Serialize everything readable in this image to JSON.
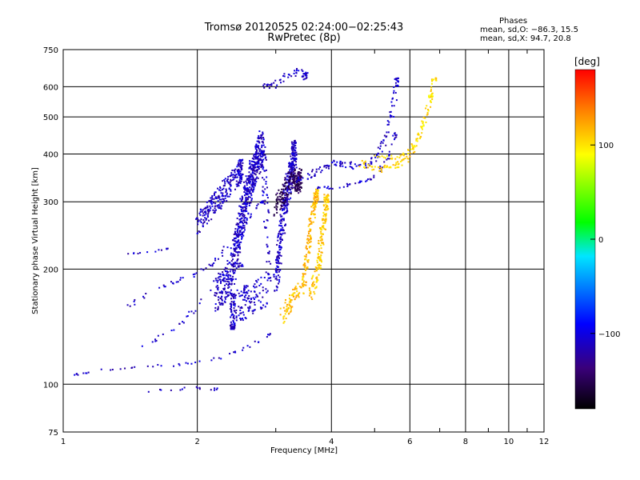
{
  "header": {
    "title_line1": "Tromsø 20120525 02:24:00−02:25:43",
    "title_line2": "RwPretec (8p)",
    "phases_title": "Phases",
    "phases_line1": "mean, sd,O: −86.3, 15.5",
    "phases_line2": "mean, sd,X:  94.7, 20.8"
  },
  "colorbar": {
    "unit": "[deg]",
    "range": [
      -180,
      180
    ],
    "ticks": [
      {
        "value": 100,
        "label": "100"
      },
      {
        "value": 0,
        "label": "0"
      },
      {
        "value": -100,
        "label": "−100"
      }
    ]
  },
  "chart_data": {
    "type": "scatter",
    "xlabel": "Frequency [MHz]",
    "ylabel": "Stationary phase Virtual Height [km]",
    "x_scale": "log",
    "y_scale": "log",
    "xlim": [
      1,
      12
    ],
    "ylim": [
      75,
      750
    ],
    "x_ticks": [
      1,
      2,
      4,
      6,
      8,
      10,
      12
    ],
    "x_tick_labels": [
      "1",
      "2",
      "4",
      "6",
      "8",
      "10",
      "12"
    ],
    "y_ticks": [
      75,
      100,
      200,
      300,
      400,
      500,
      600,
      750
    ],
    "y_tick_labels": [
      "75",
      "100",
      "200",
      "300",
      "400",
      "500",
      "600",
      "750"
    ],
    "grid": true,
    "traces": [
      {
        "phase": -110,
        "spread": 3,
        "points": [
          [
            1.0,
            104
          ],
          [
            1.1,
            107
          ],
          [
            1.2,
            109
          ],
          [
            1.35,
            110
          ],
          [
            1.5,
            111
          ],
          [
            1.7,
            112
          ],
          [
            1.9,
            113
          ],
          [
            2.1,
            115
          ],
          [
            2.3,
            118
          ],
          [
            2.5,
            123
          ],
          [
            2.7,
            128
          ],
          [
            2.9,
            135
          ]
        ]
      },
      {
        "phase": -110,
        "spread": 5,
        "points": [
          [
            1.5,
            125
          ],
          [
            1.7,
            135
          ],
          [
            1.9,
            150
          ],
          [
            2.1,
            170
          ],
          [
            2.3,
            190
          ],
          [
            2.5,
            205
          ]
        ]
      },
      {
        "phase": -110,
        "spread": 6,
        "points": [
          [
            1.4,
            160
          ],
          [
            1.6,
            175
          ],
          [
            1.8,
            185
          ],
          [
            2.0,
            195
          ],
          [
            2.2,
            210
          ],
          [
            2.4,
            240
          ],
          [
            2.6,
            270
          ],
          [
            2.8,
            300
          ]
        ]
      },
      {
        "phase": -110,
        "spread": 45,
        "points": [
          [
            2.2,
            170
          ],
          [
            2.3,
            180
          ],
          [
            2.4,
            200
          ],
          [
            2.45,
            230
          ],
          [
            2.5,
            260
          ],
          [
            2.55,
            290
          ],
          [
            2.6,
            320
          ],
          [
            2.65,
            350
          ],
          [
            2.7,
            380
          ],
          [
            2.75,
            400
          ],
          [
            2.8,
            420
          ],
          [
            2.9,
            180
          ],
          [
            2.6,
            165
          ],
          [
            2.4,
            155
          ]
        ]
      },
      {
        "phase": -110,
        "spread": 30,
        "points": [
          [
            2.0,
            260
          ],
          [
            2.1,
            280
          ],
          [
            2.2,
            300
          ],
          [
            2.3,
            320
          ],
          [
            2.4,
            340
          ],
          [
            2.5,
            360
          ]
        ]
      },
      {
        "phase": -110,
        "spread": 2,
        "points": [
          [
            1.35,
            220
          ],
          [
            1.45,
            220
          ],
          [
            1.6,
            221
          ],
          [
            1.7,
            226
          ]
        ]
      },
      {
        "phase": -110,
        "spread": 35,
        "points": [
          [
            3.0,
            180
          ],
          [
            3.05,
            220
          ],
          [
            3.1,
            260
          ],
          [
            3.15,
            300
          ],
          [
            3.2,
            330
          ],
          [
            3.25,
            360
          ],
          [
            3.3,
            400
          ]
        ]
      },
      {
        "phase": -150,
        "spread": 25,
        "points": [
          [
            3.0,
            290
          ],
          [
            3.1,
            310
          ],
          [
            3.2,
            330
          ],
          [
            3.3,
            350
          ],
          [
            3.35,
            330
          ],
          [
            3.4,
            345
          ]
        ]
      },
      {
        "phase": -110,
        "spread": 8,
        "points": [
          [
            3.3,
            340
          ],
          [
            3.5,
            350
          ],
          [
            3.7,
            360
          ],
          [
            3.9,
            370
          ],
          [
            4.1,
            380
          ],
          [
            4.3,
            375
          ],
          [
            4.6,
            370
          ],
          [
            4.9,
            380
          ],
          [
            5.1,
            400
          ],
          [
            5.3,
            440
          ],
          [
            5.45,
            500
          ],
          [
            5.55,
            560
          ],
          [
            5.6,
            620
          ]
        ]
      },
      {
        "phase": -110,
        "spread": 4,
        "points": [
          [
            3.6,
            330
          ],
          [
            3.9,
            325
          ],
          [
            4.2,
            330
          ],
          [
            4.5,
            335
          ],
          [
            4.8,
            340
          ],
          [
            5.0,
            350
          ],
          [
            5.2,
            370
          ],
          [
            5.4,
            400
          ],
          [
            5.55,
            450
          ]
        ]
      },
      {
        "phase": 115,
        "spread": 18,
        "points": [
          [
            3.1,
            150
          ],
          [
            3.2,
            160
          ],
          [
            3.3,
            170
          ],
          [
            3.45,
            180
          ],
          [
            3.5,
            200
          ],
          [
            3.55,
            230
          ],
          [
            3.6,
            260
          ],
          [
            3.65,
            290
          ],
          [
            3.7,
            310
          ]
        ]
      },
      {
        "phase": 110,
        "spread": 20,
        "points": [
          [
            3.6,
            170
          ],
          [
            3.7,
            190
          ],
          [
            3.75,
            210
          ],
          [
            3.8,
            240
          ],
          [
            3.85,
            270
          ],
          [
            3.9,
            300
          ]
        ]
      },
      {
        "phase": 105,
        "spread": 8,
        "points": [
          [
            4.6,
            380
          ],
          [
            4.9,
            370
          ],
          [
            5.2,
            365
          ],
          [
            5.5,
            370
          ],
          [
            5.8,
            380
          ],
          [
            6.0,
            395
          ],
          [
            6.2,
            420
          ],
          [
            6.4,
            470
          ],
          [
            6.6,
            540
          ],
          [
            6.8,
            620
          ]
        ]
      },
      {
        "phase": 100,
        "spread": 5,
        "points": [
          [
            5.0,
            395
          ],
          [
            5.4,
            390
          ],
          [
            5.7,
            395
          ],
          [
            6.0,
            410
          ],
          [
            6.3,
            450
          ],
          [
            6.5,
            500
          ],
          [
            6.7,
            570
          ]
        ]
      },
      {
        "phase": -110,
        "spread": 10,
        "points": [
          [
            2.8,
            600
          ],
          [
            3.0,
            610
          ],
          [
            3.3,
            660
          ],
          [
            3.5,
            640
          ]
        ]
      },
      {
        "phase": -110,
        "spread": 3,
        "points": [
          [
            1.4,
            95
          ],
          [
            1.8,
            97
          ],
          [
            2.0,
            98
          ],
          [
            2.2,
            97
          ]
        ]
      }
    ]
  }
}
